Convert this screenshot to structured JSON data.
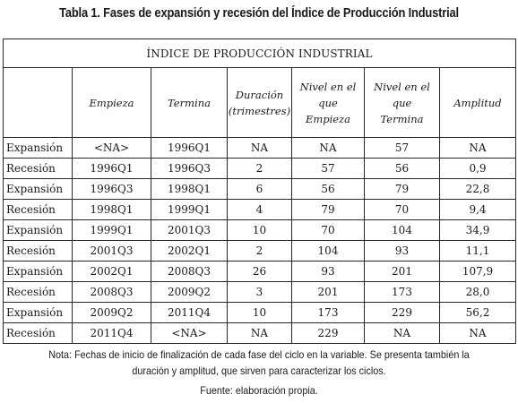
{
  "caption": "Tabla 1. Fases de expansión y recesión del Índice de Producción Industrial",
  "table": {
    "title": "ÍNDICE DE PRODUCCIÓN INDUSTRIAL",
    "headers": {
      "phase": "",
      "start": "Empieza",
      "end": "Termina",
      "duration_line1": "Duración",
      "duration_line2": "(trimestres)",
      "level_start_line1": "Nivel en el que",
      "level_start_line2": "Empieza",
      "level_end_line1": "Nivel en el que",
      "level_end_line2": "Termina",
      "amplitude": "Amplitud"
    },
    "rows": [
      {
        "phase": "Expansión",
        "start": "<NA>",
        "end": "1996Q1",
        "duration": "NA",
        "level_start": "NA",
        "level_end": "57",
        "amplitude": "NA"
      },
      {
        "phase": "Recesión",
        "start": "1996Q1",
        "end": "1996Q3",
        "duration": "2",
        "level_start": "57",
        "level_end": "56",
        "amplitude": "0,9"
      },
      {
        "phase": "Expansión",
        "start": "1996Q3",
        "end": "1998Q1",
        "duration": "6",
        "level_start": "56",
        "level_end": "79",
        "amplitude": "22,8"
      },
      {
        "phase": "Recesión",
        "start": "1998Q1",
        "end": "1999Q1",
        "duration": "4",
        "level_start": "79",
        "level_end": "70",
        "amplitude": "9,4"
      },
      {
        "phase": "Expansión",
        "start": "1999Q1",
        "end": "2001Q3",
        "duration": "10",
        "level_start": "70",
        "level_end": "104",
        "amplitude": "34,9"
      },
      {
        "phase": "Recesión",
        "start": "2001Q3",
        "end": "2002Q1",
        "duration": "2",
        "level_start": "104",
        "level_end": "93",
        "amplitude": "11,1"
      },
      {
        "phase": "Expansión",
        "start": "2002Q1",
        "end": "2008Q3",
        "duration": "26",
        "level_start": "93",
        "level_end": "201",
        "amplitude": "107,9"
      },
      {
        "phase": "Recesión",
        "start": "2008Q3",
        "end": "2009Q2",
        "duration": "3",
        "level_start": "201",
        "level_end": "173",
        "amplitude": "28,0"
      },
      {
        "phase": "Expansión",
        "start": "2009Q2",
        "end": "2011Q4",
        "duration": "10",
        "level_start": "173",
        "level_end": "229",
        "amplitude": "56,2"
      },
      {
        "phase": "Recesión",
        "start": "2011Q4",
        "end": "<NA>",
        "duration": "NA",
        "level_start": "229",
        "level_end": "NA",
        "amplitude": "NA"
      }
    ]
  },
  "note": "Nota: Fechas de inicio de finalización de cada fase del ciclo en la variable. Se presenta también la duración y amplitud, que sirven para caracterizar los ciclos.",
  "source": "Fuente: elaboración propia."
}
